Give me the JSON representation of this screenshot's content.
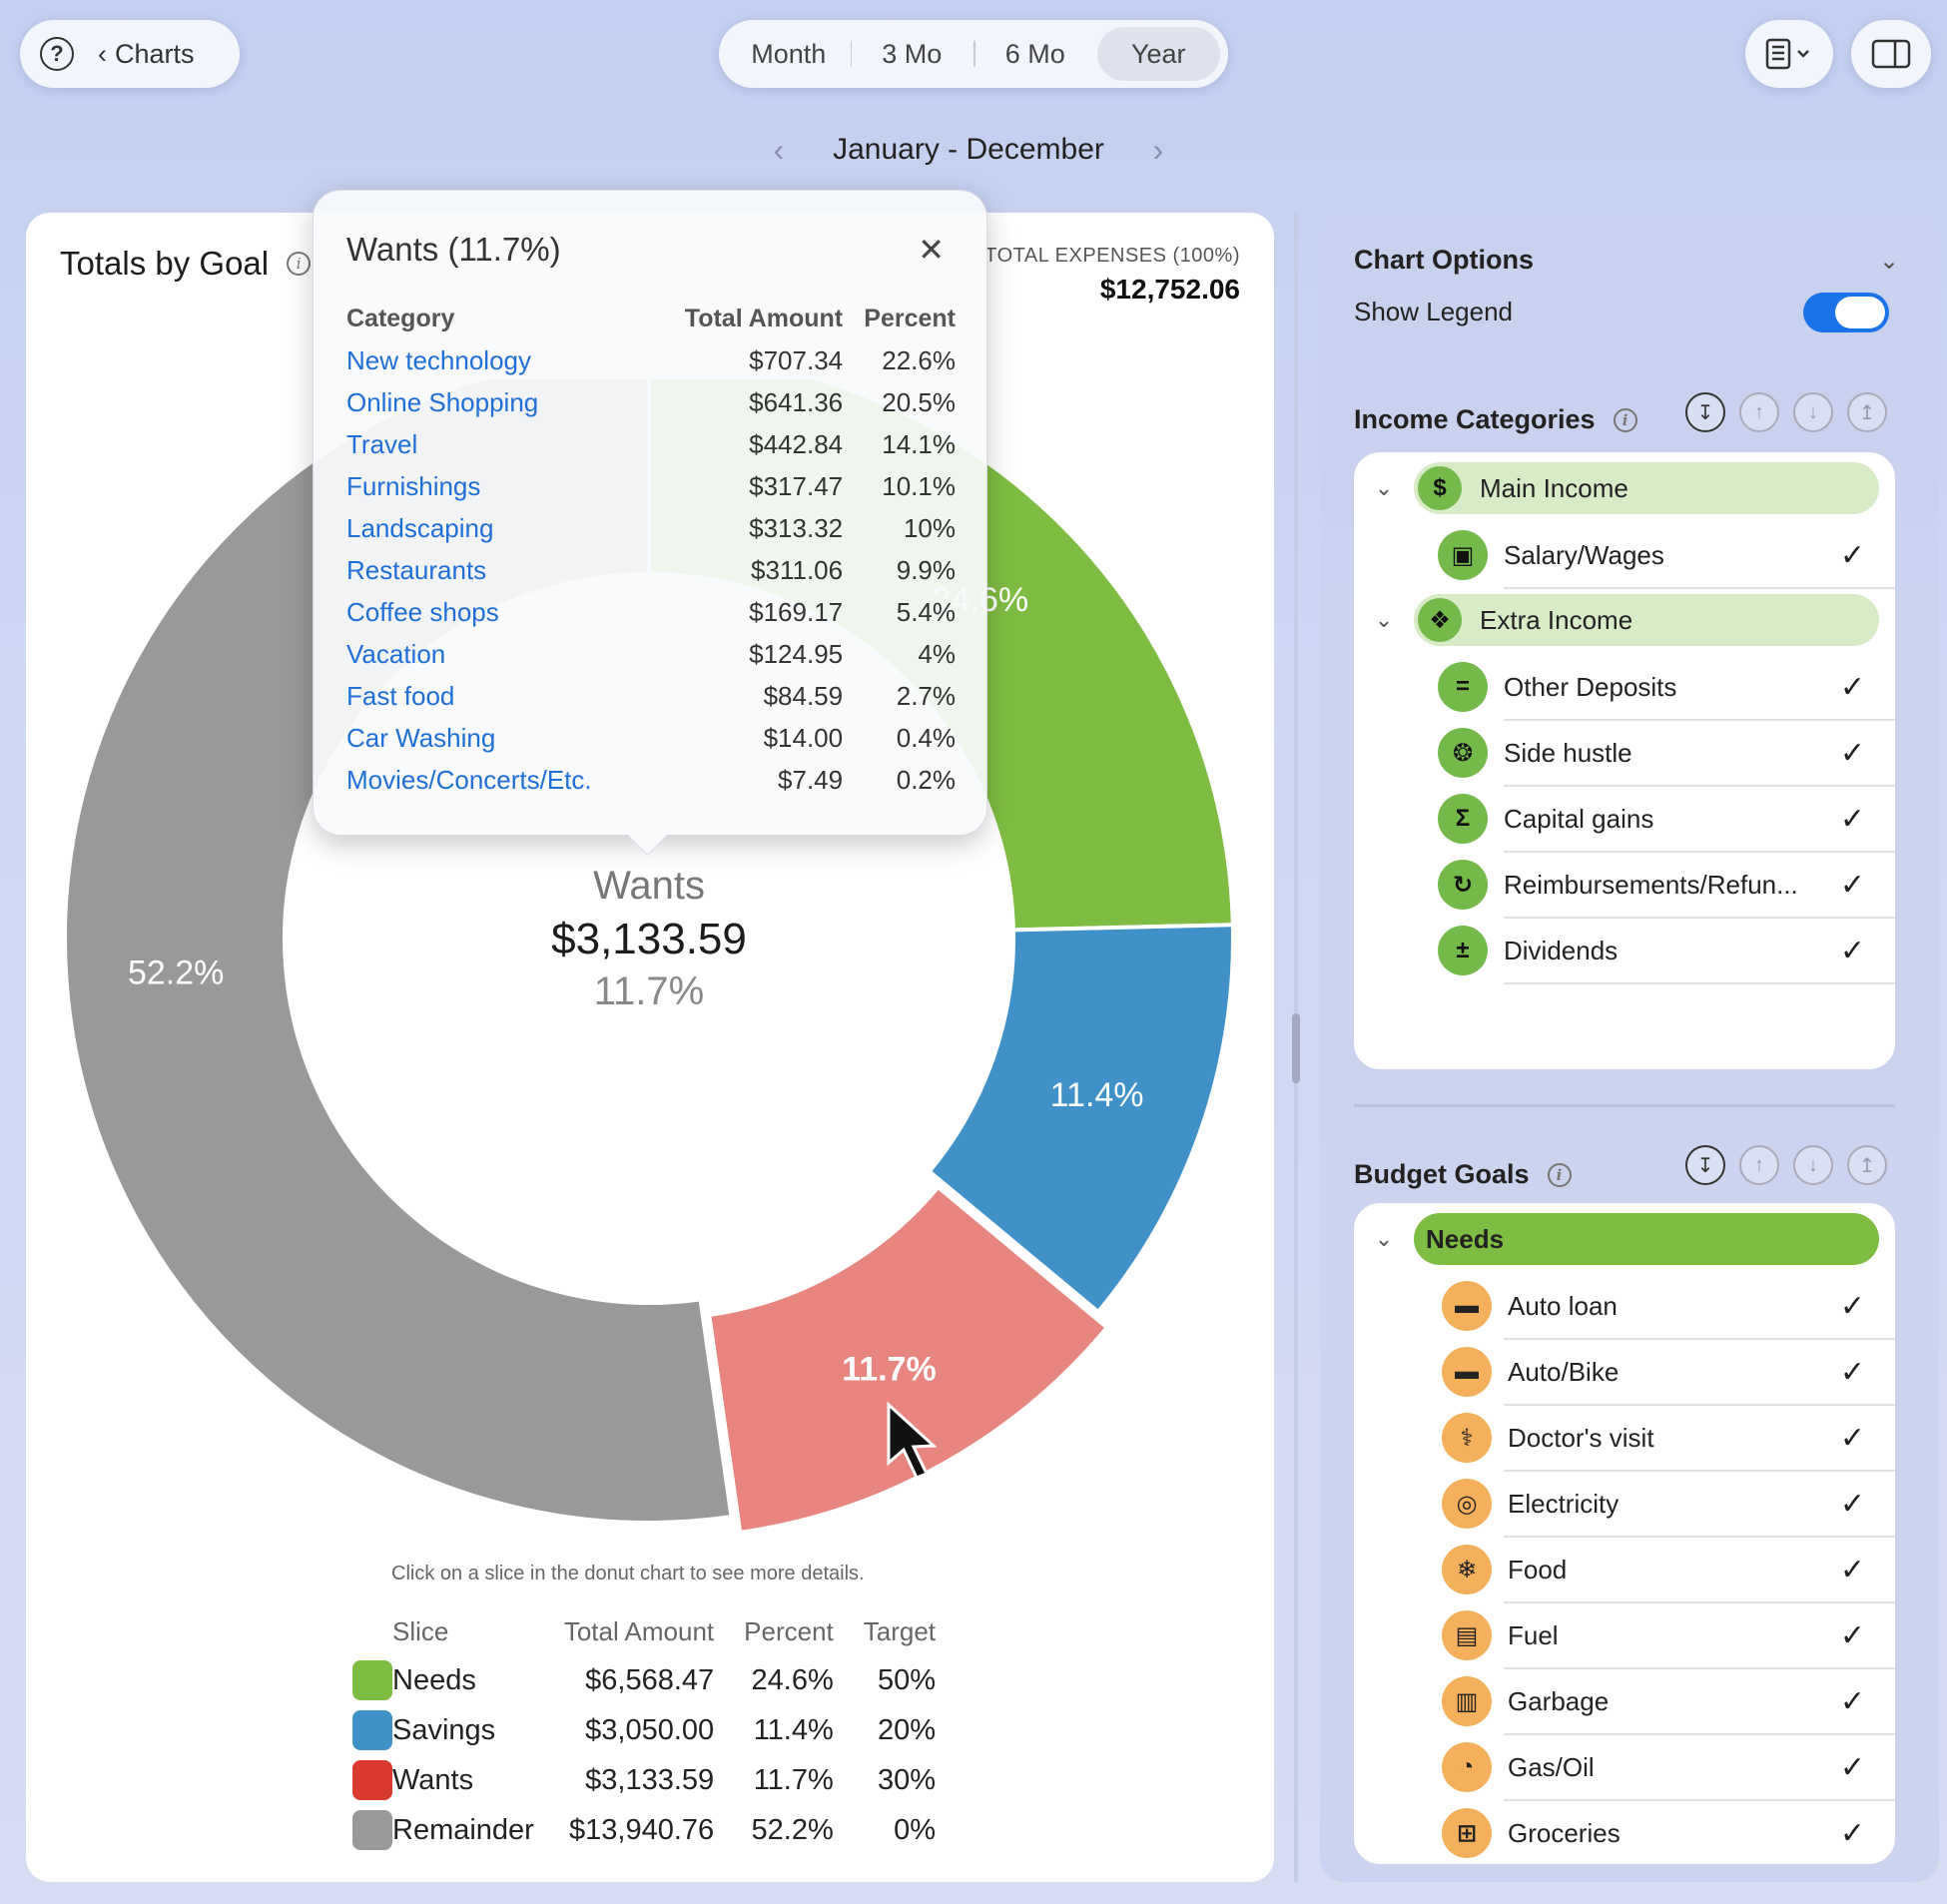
{
  "toolbar": {
    "back_label": "Charts",
    "period_tabs": [
      "Month",
      "3 Mo",
      "6 Mo",
      "Year"
    ],
    "active_period": "Year",
    "date_range": "January - December"
  },
  "card": {
    "title": "Totals by Goal",
    "total_label": "TOTAL EXPENSES (100%)",
    "total_value": "$12,752.06",
    "hint": "Click on a slice in the donut chart to see more details."
  },
  "chart_data": {
    "type": "pie",
    "slices": [
      {
        "name": "Needs",
        "value": 6568.47,
        "percent": 24.6,
        "label": "24.6%",
        "color": "#7fbd42"
      },
      {
        "name": "Savings",
        "value": 3050.0,
        "percent": 11.4,
        "label": "11.4%",
        "color": "#4191c9"
      },
      {
        "name": "Wants",
        "value": 3133.59,
        "percent": 11.7,
        "label": "11.7%",
        "color": "#e8857e"
      },
      {
        "name": "Remainder",
        "value": 13940.76,
        "percent": 52.2,
        "label": "52.2%",
        "color": "#999999"
      }
    ],
    "center": {
      "name": "Wants",
      "amount": "$3,133.59",
      "percent": "11.7%"
    },
    "visible_needs_label": ".6%"
  },
  "popover": {
    "title": "Wants (11.7%)",
    "columns": [
      "Category",
      "Total Amount",
      "Percent"
    ],
    "rows": [
      [
        "New technology",
        "$707.34",
        "22.6%"
      ],
      [
        "Online Shopping",
        "$641.36",
        "20.5%"
      ],
      [
        "Travel",
        "$442.84",
        "14.1%"
      ],
      [
        "Furnishings",
        "$317.47",
        "10.1%"
      ],
      [
        "Landscaping",
        "$313.32",
        "10%"
      ],
      [
        "Restaurants",
        "$311.06",
        "9.9%"
      ],
      [
        "Coffee shops",
        "$169.17",
        "5.4%"
      ],
      [
        "Vacation",
        "$124.95",
        "4%"
      ],
      [
        "Fast food",
        "$84.59",
        "2.7%"
      ],
      [
        "Car Washing",
        "$14.00",
        "0.4%"
      ],
      [
        "Movies/Concerts/Etc.",
        "$7.49",
        "0.2%"
      ]
    ]
  },
  "legend": {
    "columns": [
      "Slice",
      "Total Amount",
      "Percent",
      "Target"
    ],
    "rows": [
      {
        "name": "Needs",
        "amount": "$6,568.47",
        "percent": "24.6%",
        "target": "50%",
        "color": "#7fbd42"
      },
      {
        "name": "Savings",
        "amount": "$3,050.00",
        "percent": "11.4%",
        "target": "20%",
        "color": "#4191c9"
      },
      {
        "name": "Wants",
        "amount": "$3,133.59",
        "percent": "11.7%",
        "target": "30%",
        "color": "#d93a2f"
      },
      {
        "name": "Remainder",
        "amount": "$13,940.76",
        "percent": "52.2%",
        "target": "0%",
        "color": "#999999"
      }
    ]
  },
  "side": {
    "chart_options": "Chart Options",
    "show_legend": "Show Legend",
    "income_title": "Income Categories",
    "income_groups": [
      {
        "name": "Main Income",
        "icon": "dollar-icon",
        "items": [
          {
            "label": "Salary/Wages",
            "icon": "briefcase-icon"
          }
        ]
      },
      {
        "name": "Extra Income",
        "icon": "gift-icon",
        "items": [
          {
            "label": "Other Deposits",
            "icon": "equals-icon"
          },
          {
            "label": "Side hustle",
            "icon": "lifebuoy-icon"
          },
          {
            "label": "Capital gains",
            "icon": "sigma-icon"
          },
          {
            "label": "Reimbursements/Refun...",
            "icon": "refund-icon"
          },
          {
            "label": "Dividends",
            "icon": "plus-minus-icon"
          }
        ]
      }
    ],
    "budget_title": "Budget Goals",
    "budget_group": "Needs",
    "budget_items": [
      {
        "label": "Auto loan",
        "icon": "car-icon"
      },
      {
        "label": "Auto/Bike",
        "icon": "car-icon"
      },
      {
        "label": "Doctor's visit",
        "icon": "stethoscope-icon"
      },
      {
        "label": "Electricity",
        "icon": "lightbulb-icon"
      },
      {
        "label": "Food",
        "icon": "carrot-icon"
      },
      {
        "label": "Fuel",
        "icon": "fuel-pump-icon"
      },
      {
        "label": "Garbage",
        "icon": "trash-icon"
      },
      {
        "label": "Gas/Oil",
        "icon": "gauge-icon"
      },
      {
        "label": "Groceries",
        "icon": "cart-icon"
      }
    ]
  }
}
